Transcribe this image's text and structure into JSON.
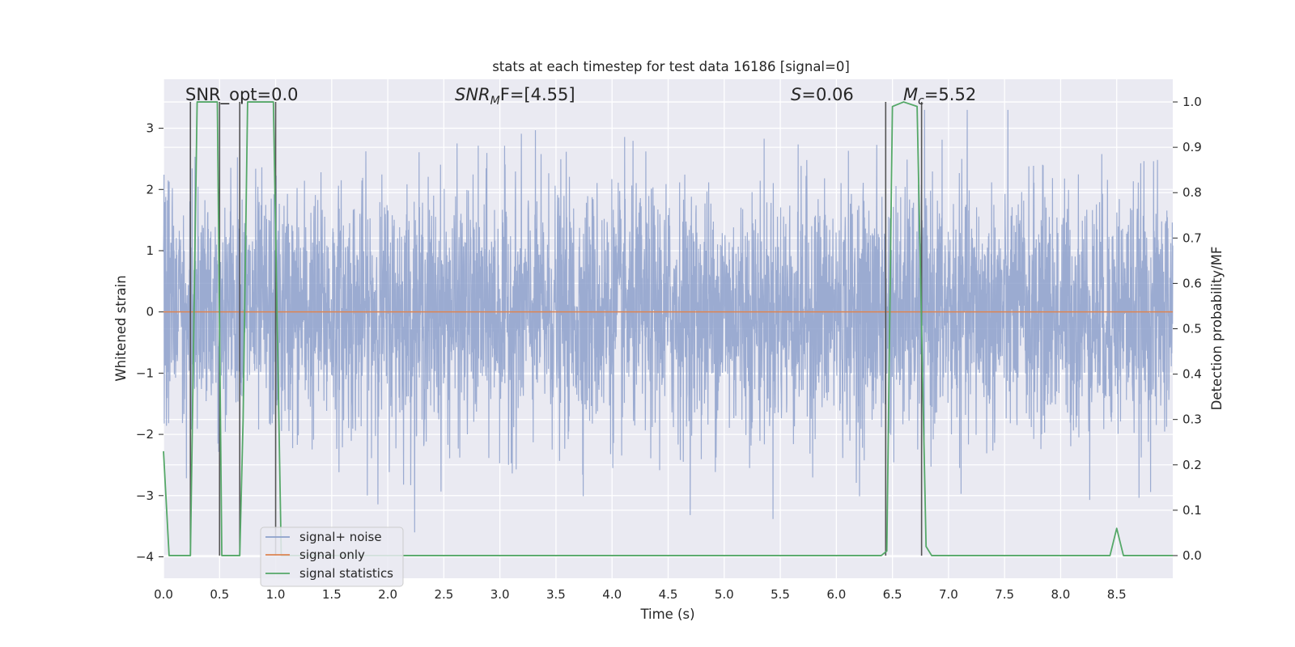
{
  "chart_data": {
    "type": "line",
    "title": "stats at each timestep for test data 16186 [signal=0]",
    "xlabel": "Time (s)",
    "ylabel": "Whitened strain",
    "y2label": "Detection probability/MF",
    "xlim": [
      0.0,
      9.0
    ],
    "ylim": [
      -4.35,
      3.8
    ],
    "y2lim": [
      -0.05,
      1.05
    ],
    "grid": true,
    "x_ticks": [
      0.0,
      0.5,
      1.0,
      1.5,
      2.0,
      2.5,
      3.0,
      3.5,
      4.0,
      4.5,
      5.0,
      5.5,
      6.0,
      6.5,
      7.0,
      7.5,
      8.0,
      8.5
    ],
    "x_tick_labels": [
      "0.0",
      "0.5",
      "1.0",
      "1.5",
      "2.0",
      "2.5",
      "3.0",
      "3.5",
      "4.0",
      "4.5",
      "5.0",
      "5.5",
      "6.0",
      "6.5",
      "7.0",
      "7.5",
      "8.0",
      "8.5"
    ],
    "y_ticks": [
      -4,
      -3,
      -2,
      -1,
      0,
      1,
      2,
      3
    ],
    "y_tick_labels": [
      "−4",
      "−3",
      "−2",
      "−1",
      "0",
      "1",
      "2",
      "3"
    ],
    "y2_ticks": [
      0.0,
      0.1,
      0.2,
      0.3,
      0.4,
      0.5,
      0.6,
      0.7,
      0.8,
      0.9,
      1.0
    ],
    "y2_tick_labels": [
      "0.0",
      "0.1",
      "0.2",
      "0.3",
      "0.4",
      "0.5",
      "0.6",
      "0.7",
      "0.8",
      "0.9",
      "1.0"
    ],
    "annotations": {
      "snr_opt": "SNR_opt=0.0",
      "snr_mf": "SNR",
      "snr_mf_sub": "M",
      "snr_mf_rest": "F=[4.55]",
      "s_var": "S",
      "s_rest": "=0.06",
      "mc_var": "M",
      "mc_sub": "c",
      "mc_rest": "=5.52"
    },
    "legend": {
      "location": "lower-left",
      "entries": [
        "signal+ noise",
        "signal only",
        "signal statistics"
      ]
    },
    "colors": {
      "background": "#eaeaf2",
      "grid": "#ffffff",
      "noise": "#8da0cb",
      "signal_only": "#dd8452",
      "statistics": "#55a868",
      "trigger_lines": "#555555"
    },
    "series": [
      {
        "name": "signal+ noise",
        "description_stats": {
          "mean": 0.0,
          "std": 1.0,
          "min": -3.6,
          "max": 3.3,
          "samples": 4096,
          "duration_s": 9.0
        }
      },
      {
        "name": "signal only",
        "x": [
          0.0,
          9.0
        ],
        "values": [
          0.0,
          0.0
        ]
      },
      {
        "name": "signal statistics",
        "axis": "y2",
        "x": [
          0.0,
          0.05,
          0.24,
          0.3,
          0.48,
          0.52,
          0.55,
          0.68,
          0.71,
          0.75,
          0.98,
          1.05,
          1.1,
          6.4,
          6.45,
          6.5,
          6.6,
          6.72,
          6.8,
          6.85,
          6.9,
          7.5,
          7.6,
          8.44,
          8.5,
          8.56,
          9.0
        ],
        "values": [
          0.23,
          0.0,
          0.0,
          1.0,
          1.0,
          0.0,
          0.0,
          0.0,
          0.3,
          1.0,
          1.0,
          0.0,
          0.0,
          0.0,
          0.01,
          0.99,
          1.0,
          0.99,
          0.02,
          0.0,
          0.0,
          0.0,
          0.0,
          0.0,
          0.06,
          0.0,
          0.0
        ]
      }
    ],
    "trigger_times": [
      0.24,
      0.5,
      0.68,
      1.0,
      6.44,
      6.76
    ]
  }
}
